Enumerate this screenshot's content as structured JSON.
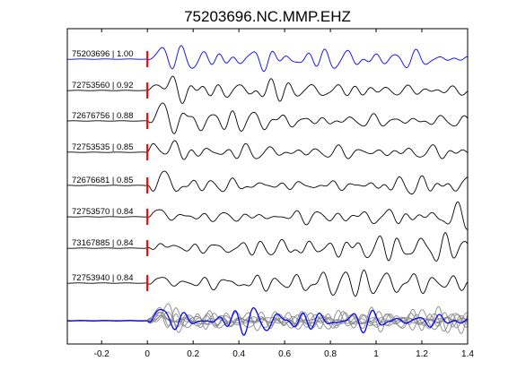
{
  "chart_data": {
    "type": "line",
    "title": "75203696.NC.MMP.EHZ",
    "xlabel": "",
    "ylabel": "",
    "xlim": [
      -0.35,
      1.4
    ],
    "x_ticks": [
      -0.2,
      0,
      0.2,
      0.4,
      0.6,
      0.8,
      1.0,
      1.2,
      1.4
    ],
    "x_tick_labels": [
      "-0.2",
      "0",
      "0.2",
      "0.4",
      "0.6",
      "0.8",
      "1",
      "1.2",
      "1.4"
    ],
    "grid": false,
    "pick_time": 0,
    "traces": [
      {
        "event_id": "75203696",
        "correlation": "1.00",
        "label": "75203696 | 1.00",
        "color": "#0000ff",
        "pick_color": "#ff0000"
      },
      {
        "event_id": "72753560",
        "correlation": "0.92",
        "label": "72753560 | 0.92",
        "color": "#000000",
        "pick_color": "#ff0000"
      },
      {
        "event_id": "72676756",
        "correlation": "0.88",
        "label": "72676756 | 0.88",
        "color": "#000000",
        "pick_color": "#ff0000"
      },
      {
        "event_id": "72753535",
        "correlation": "0.85",
        "label": "72753535 | 0.85",
        "color": "#000000",
        "pick_color": "#ff0000"
      },
      {
        "event_id": "72676681",
        "correlation": "0.85",
        "label": "72676681 | 0.85",
        "color": "#000000",
        "pick_color": "#ff0000"
      },
      {
        "event_id": "72753570",
        "correlation": "0.84",
        "label": "72753570 | 0.84",
        "color": "#000000",
        "pick_color": "#ff0000"
      },
      {
        "event_id": "73167885",
        "correlation": "0.84",
        "label": "73167885 | 0.84",
        "color": "#000000",
        "pick_color": "#ff0000"
      },
      {
        "event_id": "72753940",
        "correlation": "0.84",
        "label": "72753940 | 0.84",
        "color": "#000000",
        "pick_color": "#ff0000"
      }
    ],
    "stack": {
      "master_color": "#0000ff",
      "member_color": "#888888"
    }
  }
}
